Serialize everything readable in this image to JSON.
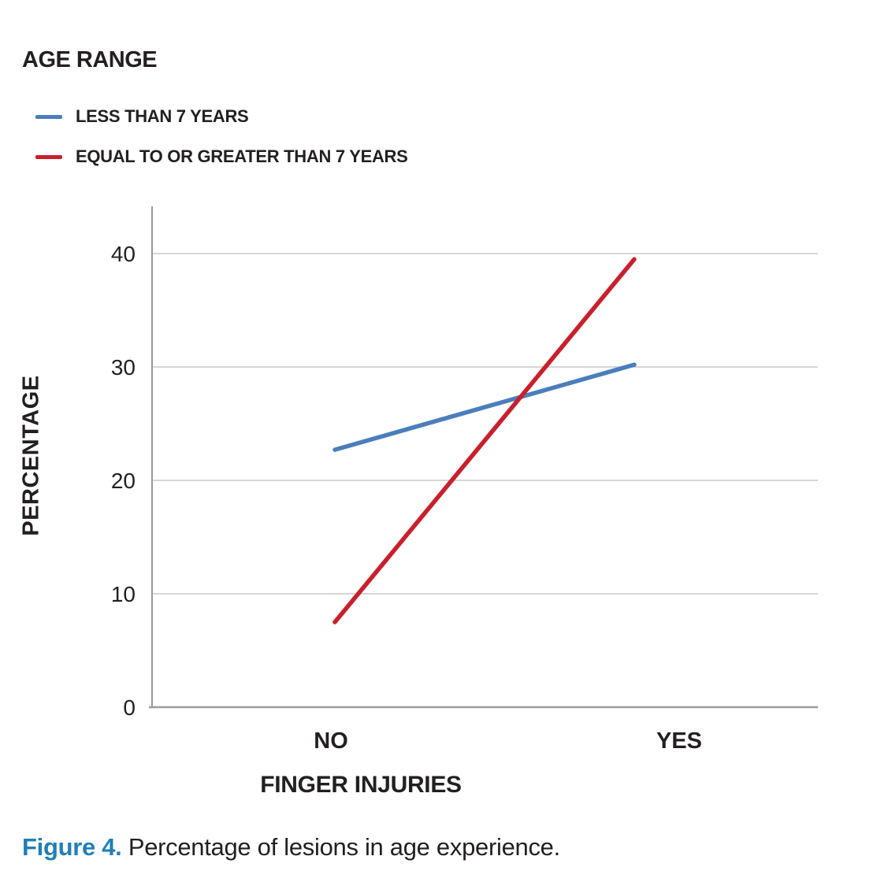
{
  "legend": {
    "title": "AGE RANGE",
    "items": [
      {
        "label": "LESS THAN 7 YEARS",
        "color": "#4A7EBD"
      },
      {
        "label": "EQUAL TO OR GREATER THAN 7 YEARS",
        "color": "#C9202C"
      }
    ]
  },
  "chart_data": {
    "type": "line",
    "categories": [
      "NO",
      "YES"
    ],
    "series": [
      {
        "name": "LESS THAN 7 YEARS",
        "color": "#4A7EBD",
        "values": [
          22.7,
          30.2
        ]
      },
      {
        "name": "EQUAL TO OR GREATER THAN 7 YEARS",
        "color": "#C9202C",
        "values": [
          7.5,
          39.5
        ]
      }
    ],
    "title": "",
    "xlabel": "FINGER INJURIES",
    "ylabel": "PERCENTAGE",
    "ylim": [
      0,
      44
    ],
    "yticks": [
      0,
      10,
      20,
      30,
      40
    ],
    "grid": true,
    "legend_position": "top-left",
    "axis_color": "#9B9B9D",
    "gridline_color": "#C9C9C9"
  },
  "caption": {
    "label": "Figure 4.",
    "text": " Percentage of lesions in age experience.",
    "label_color": "#1F7FB8"
  }
}
